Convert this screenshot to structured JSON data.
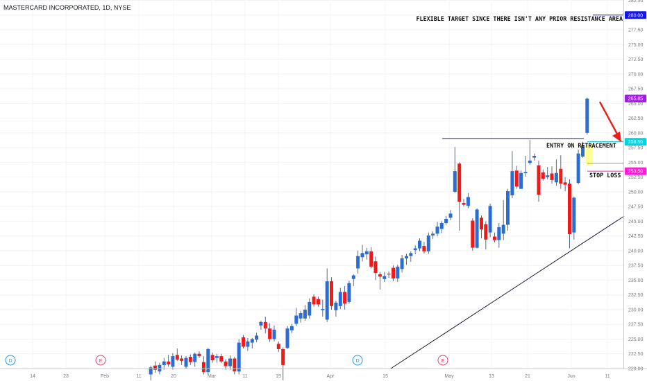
{
  "chart_data": {
    "type": "candlestick",
    "title": "MASTERCARD INCORPORATED, 1D, NYSE",
    "ylim": [
      220.0,
      282.5
    ],
    "y_ticks": [
      "282.50",
      "280.00",
      "277.50",
      "275.00",
      "272.50",
      "270.00",
      "267.50",
      "265.00",
      "262.50",
      "260.00",
      "257.50",
      "255.00",
      "252.50",
      "250.00",
      "247.50",
      "245.00",
      "242.50",
      "240.00",
      "237.50",
      "235.00",
      "232.50",
      "230.00",
      "227.50",
      "225.00",
      "222.50",
      "220.00"
    ],
    "x_ticks": [
      "14",
      "23",
      "Feb",
      "11",
      "20",
      "Mar",
      "11",
      "19",
      "Apr",
      "15",
      "May",
      "13",
      "21",
      "Jun",
      "11"
    ],
    "price_badges": [
      {
        "value": "280.00",
        "color": "#1515e6"
      },
      {
        "value": "265.85",
        "color": "#a11fe0"
      },
      {
        "value": "258.50",
        "color": "#00d5e6"
      },
      {
        "value": "253.50",
        "color": "#ff1fd2"
      }
    ],
    "annotations": {
      "target": "FLEXIBLE TARGET SINCE THERE ISN'T ANY PRIOR RESISTANCE AREA",
      "entry": "ENTRY ON RETRACEMENT",
      "stop": "STOP LOSS"
    },
    "event_markers": [
      "D",
      "E",
      "D",
      "E"
    ],
    "colors": {
      "up": "#2a6ed3",
      "down": "#ee1b1b",
      "wick": "#5a6a8a",
      "trendline": "#1b1b3a",
      "arrow": "#ee1b1b"
    },
    "candles": [
      {
        "o": 219.0,
        "h": 220.5,
        "l": 218.0,
        "c": 220.2
      },
      {
        "o": 220.5,
        "h": 221.2,
        "l": 219.3,
        "c": 219.8
      },
      {
        "o": 219.5,
        "h": 221.0,
        "l": 219.0,
        "c": 220.6
      },
      {
        "o": 220.6,
        "h": 221.8,
        "l": 219.8,
        "c": 221.2
      },
      {
        "o": 221.2,
        "h": 222.3,
        "l": 220.3,
        "c": 220.7
      },
      {
        "o": 220.3,
        "h": 222.6,
        "l": 219.8,
        "c": 222.1
      },
      {
        "o": 222.3,
        "h": 223.4,
        "l": 221.3,
        "c": 221.5
      },
      {
        "o": 221.7,
        "h": 222.2,
        "l": 220.6,
        "c": 221.3
      },
      {
        "o": 220.3,
        "h": 222.1,
        "l": 219.9,
        "c": 221.8
      },
      {
        "o": 222.0,
        "h": 222.4,
        "l": 220.6,
        "c": 221.1
      },
      {
        "o": 221.1,
        "h": 222.7,
        "l": 220.3,
        "c": 222.5
      },
      {
        "o": 222.5,
        "h": 222.9,
        "l": 221.8,
        "c": 222.1
      },
      {
        "o": 221.1,
        "h": 222.1,
        "l": 219.0,
        "c": 219.4
      },
      {
        "o": 219.4,
        "h": 223.5,
        "l": 219.0,
        "c": 223.3
      },
      {
        "o": 222.3,
        "h": 222.7,
        "l": 221.0,
        "c": 221.4
      },
      {
        "o": 221.8,
        "h": 222.5,
        "l": 221.0,
        "c": 222.1
      },
      {
        "o": 222.1,
        "h": 222.5,
        "l": 220.9,
        "c": 221.2
      },
      {
        "o": 221.2,
        "h": 221.6,
        "l": 219.8,
        "c": 220.4
      },
      {
        "o": 220.4,
        "h": 222.2,
        "l": 219.8,
        "c": 221.7
      },
      {
        "o": 221.7,
        "h": 222.0,
        "l": 219.0,
        "c": 219.5
      },
      {
        "o": 219.5,
        "h": 225.0,
        "l": 219.0,
        "c": 224.4
      },
      {
        "o": 225.3,
        "h": 225.7,
        "l": 223.4,
        "c": 223.7
      },
      {
        "o": 223.7,
        "h": 225.2,
        "l": 223.0,
        "c": 224.6
      },
      {
        "o": 224.4,
        "h": 225.2,
        "l": 223.4,
        "c": 225.0
      },
      {
        "o": 224.9,
        "h": 226.1,
        "l": 224.5,
        "c": 225.6
      },
      {
        "o": 227.3,
        "h": 228.1,
        "l": 226.6,
        "c": 227.9
      },
      {
        "o": 227.9,
        "h": 228.8,
        "l": 226.0,
        "c": 226.8
      },
      {
        "o": 226.8,
        "h": 227.7,
        "l": 224.5,
        "c": 225.0
      },
      {
        "o": 225.0,
        "h": 227.3,
        "l": 224.6,
        "c": 226.6
      },
      {
        "o": 224.2,
        "h": 224.6,
        "l": 222.8,
        "c": 223.3
      },
      {
        "o": 223.3,
        "h": 223.6,
        "l": 218.0,
        "c": 220.6
      },
      {
        "o": 223.5,
        "h": 227.2,
        "l": 223.3,
        "c": 226.8
      },
      {
        "o": 226.5,
        "h": 227.6,
        "l": 226.0,
        "c": 227.2
      },
      {
        "o": 227.6,
        "h": 230.3,
        "l": 227.2,
        "c": 229.0
      },
      {
        "o": 228.5,
        "h": 229.8,
        "l": 227.8,
        "c": 229.4
      },
      {
        "o": 228.5,
        "h": 230.8,
        "l": 228.1,
        "c": 230.0
      },
      {
        "o": 229.0,
        "h": 231.9,
        "l": 228.5,
        "c": 231.3
      },
      {
        "o": 232.2,
        "h": 232.6,
        "l": 230.5,
        "c": 230.9
      },
      {
        "o": 231.8,
        "h": 232.2,
        "l": 230.5,
        "c": 230.9
      },
      {
        "o": 229.9,
        "h": 231.7,
        "l": 228.8,
        "c": 230.1
      },
      {
        "o": 228.3,
        "h": 237.0,
        "l": 227.9,
        "c": 234.8
      },
      {
        "o": 234.8,
        "h": 235.5,
        "l": 230.0,
        "c": 230.6
      },
      {
        "o": 229.9,
        "h": 231.5,
        "l": 228.8,
        "c": 231.2
      },
      {
        "o": 230.6,
        "h": 233.7,
        "l": 230.1,
        "c": 233.0
      },
      {
        "o": 233.0,
        "h": 234.0,
        "l": 230.0,
        "c": 231.0
      },
      {
        "o": 231.3,
        "h": 234.9,
        "l": 231.0,
        "c": 234.5
      },
      {
        "o": 235.2,
        "h": 236.0,
        "l": 234.0,
        "c": 235.8
      },
      {
        "o": 237.0,
        "h": 240.0,
        "l": 236.1,
        "c": 239.1
      },
      {
        "o": 238.9,
        "h": 241.0,
        "l": 238.2,
        "c": 239.6
      },
      {
        "o": 239.4,
        "h": 240.5,
        "l": 238.5,
        "c": 239.9
      },
      {
        "o": 239.9,
        "h": 240.6,
        "l": 237.0,
        "c": 237.3
      },
      {
        "o": 238.2,
        "h": 239.0,
        "l": 235.0,
        "c": 236.2
      },
      {
        "o": 236.0,
        "h": 236.4,
        "l": 233.4,
        "c": 235.6
      },
      {
        "o": 235.2,
        "h": 236.4,
        "l": 234.7,
        "c": 235.7
      },
      {
        "o": 236.1,
        "h": 236.5,
        "l": 235.4,
        "c": 236.0
      },
      {
        "o": 237.1,
        "h": 237.5,
        "l": 234.8,
        "c": 235.3
      },
      {
        "o": 235.3,
        "h": 237.6,
        "l": 234.7,
        "c": 237.3
      },
      {
        "o": 236.9,
        "h": 239.3,
        "l": 236.3,
        "c": 238.7
      },
      {
        "o": 238.7,
        "h": 239.5,
        "l": 237.6,
        "c": 239.1
      },
      {
        "o": 239.1,
        "h": 239.9,
        "l": 238.1,
        "c": 239.6
      },
      {
        "o": 240.1,
        "h": 240.9,
        "l": 239.4,
        "c": 240.4
      },
      {
        "o": 240.4,
        "h": 242.1,
        "l": 239.9,
        "c": 241.7
      },
      {
        "o": 240.8,
        "h": 241.5,
        "l": 239.5,
        "c": 239.9
      },
      {
        "o": 239.9,
        "h": 243.1,
        "l": 239.5,
        "c": 242.6
      },
      {
        "o": 242.6,
        "h": 243.3,
        "l": 242.0,
        "c": 242.9
      },
      {
        "o": 242.9,
        "h": 244.9,
        "l": 242.4,
        "c": 244.1
      },
      {
        "o": 243.7,
        "h": 245.0,
        "l": 243.0,
        "c": 244.7
      },
      {
        "o": 244.7,
        "h": 245.9,
        "l": 244.4,
        "c": 245.4
      },
      {
        "o": 245.6,
        "h": 246.9,
        "l": 245.2,
        "c": 246.3
      },
      {
        "o": 250.0,
        "h": 257.6,
        "l": 249.8,
        "c": 253.5
      },
      {
        "o": 254.8,
        "h": 255.0,
        "l": 243.4,
        "c": 248.3
      },
      {
        "o": 248.1,
        "h": 248.8,
        "l": 247.5,
        "c": 247.8
      },
      {
        "o": 247.6,
        "h": 249.8,
        "l": 247.2,
        "c": 249.1
      },
      {
        "o": 245.1,
        "h": 245.5,
        "l": 240.0,
        "c": 240.5
      },
      {
        "o": 240.5,
        "h": 247.2,
        "l": 240.4,
        "c": 247.0
      },
      {
        "o": 245.6,
        "h": 246.0,
        "l": 242.1,
        "c": 243.6
      },
      {
        "o": 244.5,
        "h": 245.0,
        "l": 240.2,
        "c": 241.9
      },
      {
        "o": 243.1,
        "h": 248.0,
        "l": 242.3,
        "c": 247.6
      },
      {
        "o": 242.4,
        "h": 243.1,
        "l": 241.4,
        "c": 241.8
      },
      {
        "o": 241.8,
        "h": 244.7,
        "l": 240.5,
        "c": 244.0
      },
      {
        "o": 242.9,
        "h": 248.6,
        "l": 241.8,
        "c": 244.4
      },
      {
        "o": 244.4,
        "h": 250.5,
        "l": 243.4,
        "c": 250.1
      },
      {
        "o": 249.4,
        "h": 256.9,
        "l": 248.9,
        "c": 253.5
      },
      {
        "o": 253.6,
        "h": 254.4,
        "l": 250.5,
        "c": 250.9
      },
      {
        "o": 250.5,
        "h": 253.6,
        "l": 250.5,
        "c": 253.2
      },
      {
        "o": 253.2,
        "h": 256.1,
        "l": 252.6,
        "c": 253.4
      },
      {
        "o": 254.9,
        "h": 258.8,
        "l": 254.6,
        "c": 255.3
      },
      {
        "o": 255.8,
        "h": 256.5,
        "l": 255.3,
        "c": 256.1
      },
      {
        "o": 254.5,
        "h": 255.3,
        "l": 248.3,
        "c": 249.5
      },
      {
        "o": 253.3,
        "h": 253.8,
        "l": 251.9,
        "c": 252.2
      },
      {
        "o": 252.5,
        "h": 254.2,
        "l": 252.1,
        "c": 252.8
      },
      {
        "o": 253.1,
        "h": 254.3,
        "l": 251.4,
        "c": 252.0
      },
      {
        "o": 251.6,
        "h": 255.5,
        "l": 251.0,
        "c": 253.2
      },
      {
        "o": 253.9,
        "h": 256.2,
        "l": 250.5,
        "c": 251.4
      },
      {
        "o": 251.6,
        "h": 252.5,
        "l": 250.1,
        "c": 251.2
      },
      {
        "o": 251.4,
        "h": 252.1,
        "l": 240.4,
        "c": 242.8
      },
      {
        "o": 243.1,
        "h": 249.2,
        "l": 241.9,
        "c": 249.0
      },
      {
        "o": 251.5,
        "h": 257.2,
        "l": 251.3,
        "c": 256.5
      },
      {
        "o": 256.0,
        "h": 258.5,
        "l": 255.8,
        "c": 257.9
      },
      {
        "o": 260.0,
        "h": 266.0,
        "l": 259.7,
        "c": 265.8
      }
    ]
  }
}
